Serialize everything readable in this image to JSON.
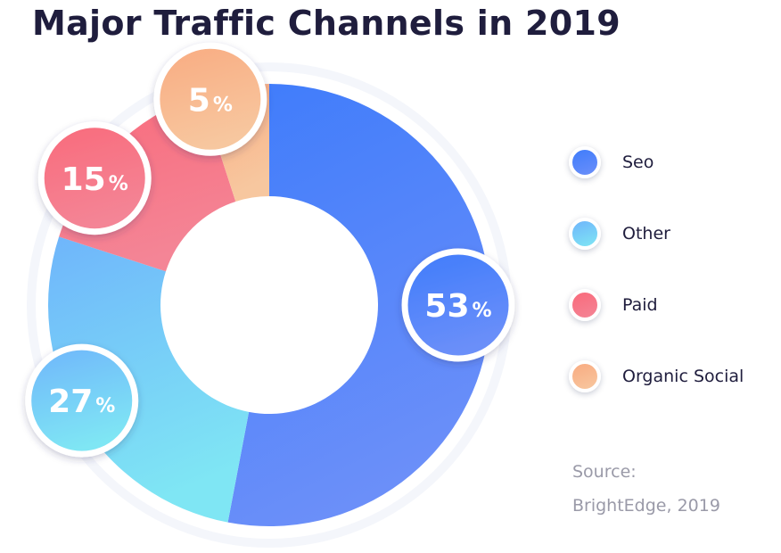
{
  "chart_data": {
    "type": "pie",
    "title": "Major Traffic Channels in 2019",
    "categories": [
      "Seo",
      "Other",
      "Paid",
      "Organic Social"
    ],
    "values": [
      53,
      27,
      15,
      5
    ],
    "value_labels": [
      "53",
      "27",
      "15",
      "5"
    ],
    "unit": "%",
    "legend_position": "right",
    "colors": [
      "#4f80f8",
      "#70c6f6",
      "#fb6f84",
      "#f9b68a"
    ],
    "gradients": [
      [
        "#3f7cfb",
        "#6b8ff9"
      ],
      [
        "#6fb5fb",
        "#7fe6f4"
      ],
      [
        "#f96a7b",
        "#f48596"
      ],
      [
        "#f9ab81",
        "#f7c79f"
      ]
    ]
  },
  "source": {
    "line1": "Source:",
    "line2": "BrightEdge, 2019"
  }
}
